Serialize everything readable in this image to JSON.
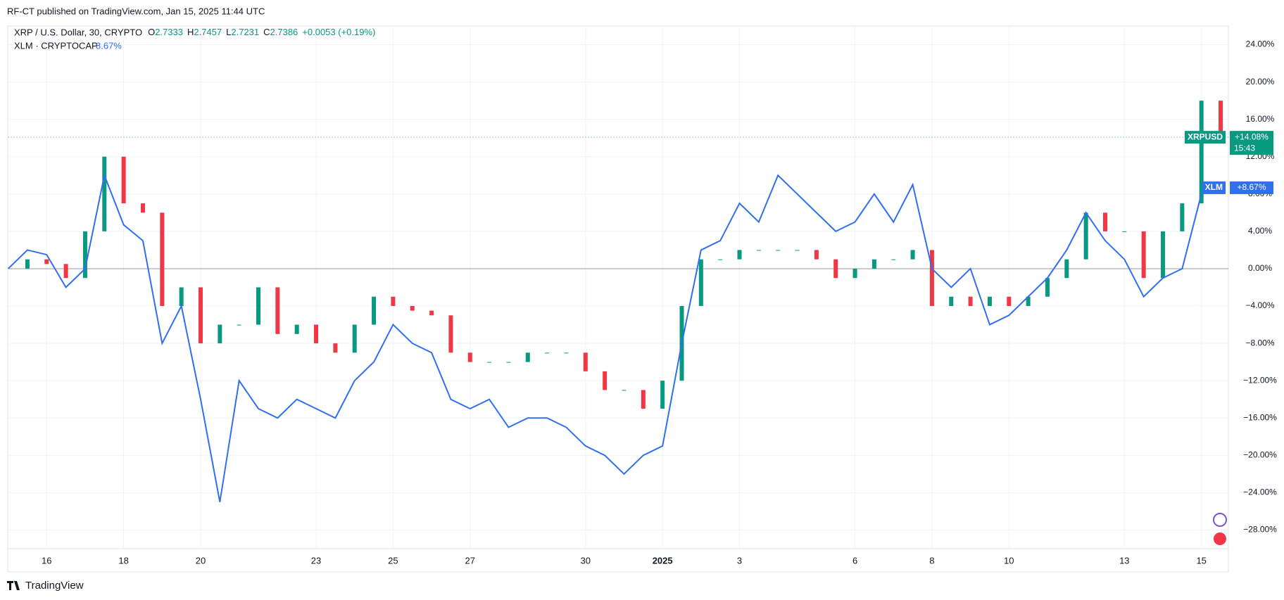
{
  "header": "RF-CT published on TradingView.com, Jan 15, 2025 11:44 UTC",
  "footer": "TradingView",
  "chart_data": {
    "type": "candlestick",
    "legend": {
      "symbol": "XRP / U.S. Dollar, 30, CRYPTO",
      "ohlc": [
        {
          "key": "O",
          "value": "2.7333"
        },
        {
          "key": "H",
          "value": "2.7457"
        },
        {
          "key": "L",
          "value": "2.7231"
        },
        {
          "key": "C",
          "value": "2.7386"
        }
      ],
      "change": "+0.0053 (+0.19%)",
      "compare": "XLM · CRYPTOCAP",
      "compare_value": "8.67%"
    },
    "categories": [
      null,
      null,
      "16",
      null,
      null,
      null,
      "18",
      null,
      null,
      null,
      "20",
      null,
      null,
      null,
      null,
      null,
      "23",
      null,
      null,
      null,
      "25",
      null,
      null,
      null,
      "27",
      null,
      null,
      null,
      null,
      null,
      "30",
      null,
      null,
      null,
      "2025",
      null,
      null,
      null,
      "3",
      null,
      null,
      null,
      null,
      null,
      "6",
      null,
      null,
      null,
      "8",
      null,
      null,
      null,
      "10",
      null,
      null,
      null,
      null,
      null,
      "13",
      null,
      null,
      null,
      "15",
      null
    ],
    "series": [
      {
        "name": "XRPUSD",
        "type": "candlestick",
        "up_color": "#089981",
        "down_color": "#f23645",
        "values": [
          0,
          1,
          0.5,
          -1,
          4,
          12,
          7,
          6,
          -4,
          -2,
          -8,
          -6,
          -6,
          -2,
          -7,
          -6,
          -8,
          -9,
          -6,
          -3,
          -4,
          -4.5,
          -5,
          -9,
          -10,
          -10,
          -10,
          -9,
          -9,
          -9,
          -11,
          -13,
          -13,
          -15,
          -12,
          -4,
          1,
          1,
          2,
          2,
          2,
          2,
          1,
          -1,
          0,
          1,
          1,
          2,
          -4,
          -3,
          -4,
          -3,
          -4,
          -3,
          -1,
          1,
          6,
          4,
          4,
          -1,
          4,
          7,
          18,
          14.08
        ],
        "last_label": "+14.08%",
        "countdown": "15:43"
      },
      {
        "name": "XLM",
        "type": "line",
        "color": "#2f6ff0",
        "values": [
          0,
          2,
          1.5,
          -2,
          0,
          10,
          4.7,
          3,
          -8,
          -4,
          -14,
          -25,
          -12,
          -15,
          -16,
          -14,
          -15,
          -16,
          -12,
          -10,
          -6,
          -8,
          -9,
          -14,
          -15,
          -14,
          -17,
          -16,
          -16,
          -17,
          -19,
          -20,
          -22,
          -20,
          -19,
          -8,
          2,
          3,
          7,
          5,
          10,
          8,
          6,
          4,
          5,
          8,
          5,
          9,
          0,
          -2,
          0,
          -6,
          -5,
          -3,
          -1,
          2,
          6,
          3,
          1,
          -3,
          -1,
          0,
          8,
          8.67
        ],
        "last_label": "+8.67%"
      }
    ],
    "ylim": [
      -30,
      26
    ],
    "yticks": [
      {
        "value": -28,
        "label": "−28.00%"
      },
      {
        "value": -24,
        "label": "−24.00%"
      },
      {
        "value": -20,
        "label": "−20.00%"
      },
      {
        "value": -16,
        "label": "−16.00%"
      },
      {
        "value": -12,
        "label": "−12.00%"
      },
      {
        "value": -8,
        "label": "−8.00%"
      },
      {
        "value": -4,
        "label": "−4.00%"
      },
      {
        "value": 0,
        "label": "0.00%"
      },
      {
        "value": 4,
        "label": "4.00%"
      },
      {
        "value": 8,
        "label": "8.00%"
      },
      {
        "value": 12,
        "label": "12.00%"
      },
      {
        "value": 16,
        "label": "16.00%"
      },
      {
        "value": 20,
        "label": "20.00%"
      },
      {
        "value": 24,
        "label": "24.00%"
      }
    ],
    "grid": true
  }
}
